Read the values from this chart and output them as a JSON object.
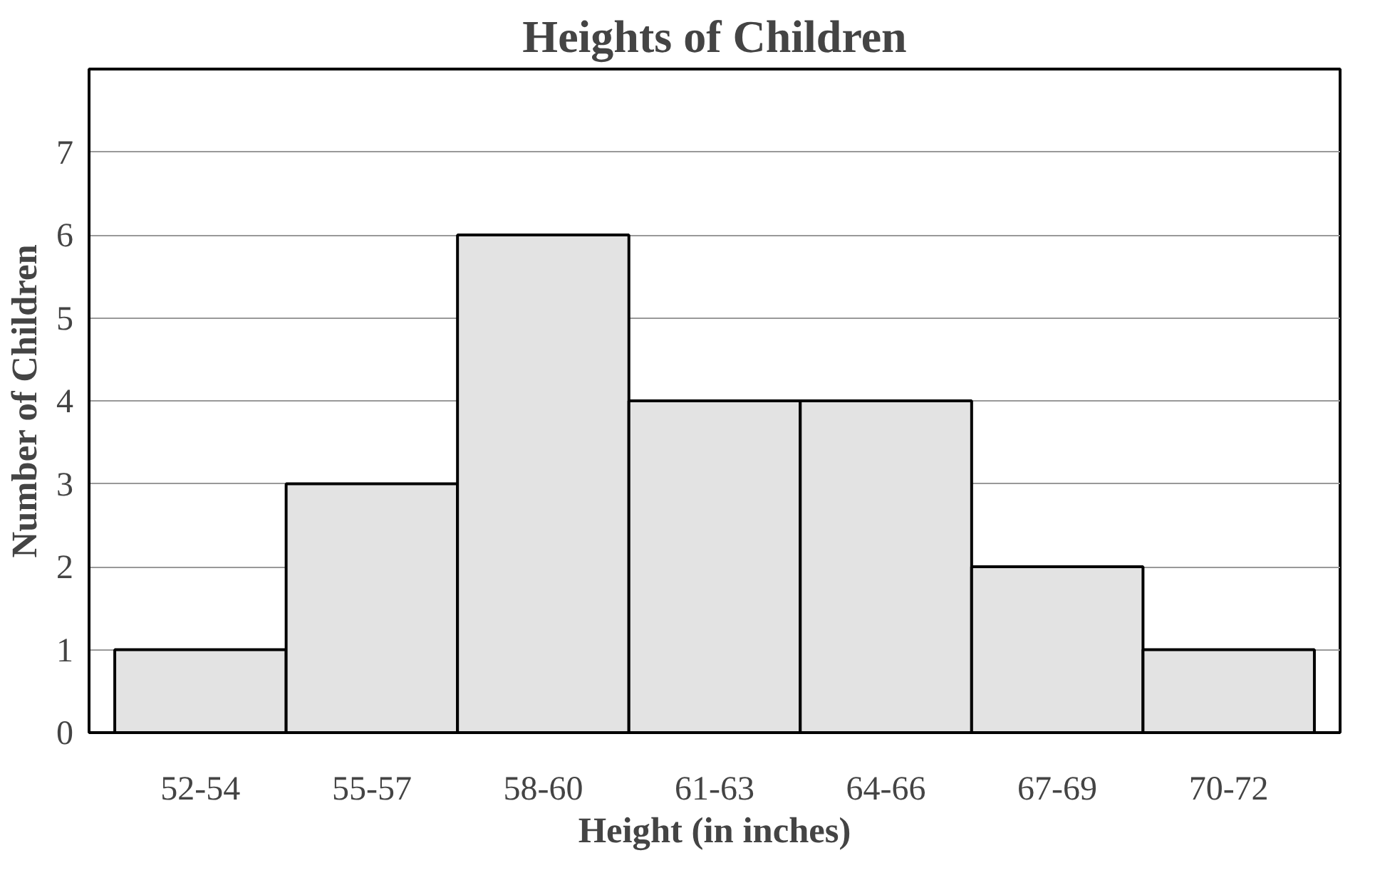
{
  "chart_data": {
    "type": "bar",
    "title": "Heights of Children",
    "xlabel": "Height (in inches)",
    "ylabel": "Number of Children",
    "categories": [
      "52-54",
      "55-57",
      "58-60",
      "61-63",
      "64-66",
      "67-69",
      "70-72"
    ],
    "values": [
      1,
      3,
      6,
      4,
      4,
      2,
      1
    ],
    "color": "#e3e3e3",
    "ylim": [
      0,
      8
    ],
    "yticks": [
      0,
      1,
      2,
      3,
      4,
      5,
      6,
      7
    ],
    "grid": "y"
  }
}
